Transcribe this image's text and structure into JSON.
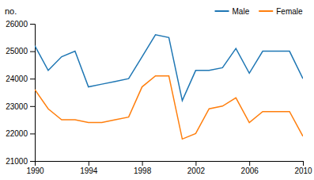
{
  "chart_data": {
    "type": "line",
    "y_label": "no.",
    "x": [
      1990,
      1991,
      1992,
      1993,
      1994,
      1995,
      1996,
      1997,
      1998,
      1999,
      2000,
      2001,
      2002,
      2003,
      2004,
      2005,
      2006,
      2007,
      2008,
      2009,
      2010
    ],
    "series": [
      {
        "name": "Male",
        "values": [
          25200,
          24300,
          24800,
          25000,
          23700,
          23800,
          23900,
          24000,
          24800,
          25600,
          25500,
          23200,
          24300,
          24300,
          24400,
          25100,
          24200,
          25000,
          25000,
          25000,
          24000
        ]
      },
      {
        "name": "Female",
        "values": [
          23600,
          22900,
          22500,
          22500,
          22400,
          22400,
          22500,
          22600,
          23700,
          24100,
          24100,
          21800,
          22000,
          22900,
          23000,
          23300,
          22400,
          22800,
          22800,
          22800,
          21900
        ]
      }
    ],
    "xlim": [
      1990,
      2010
    ],
    "xticks": [
      1990,
      1994,
      1998,
      2002,
      2006,
      2010
    ],
    "ylim": [
      21000,
      26000
    ],
    "yticks": [
      21000,
      22000,
      23000,
      24000,
      25000,
      26000
    ],
    "legend": "upper right"
  }
}
